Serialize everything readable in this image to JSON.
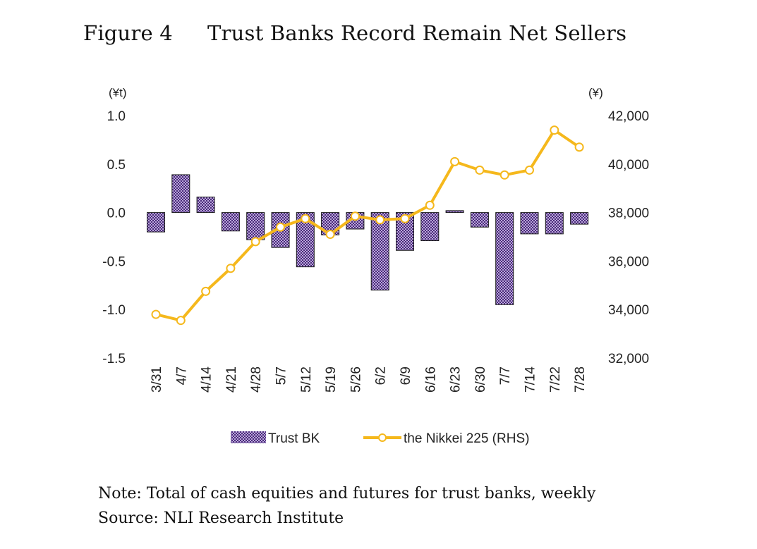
{
  "figure": {
    "number": "Figure 4",
    "title": "Trust Banks Record Remain Net Sellers"
  },
  "note": "Note: Total of cash equities and futures for trust banks, weekly",
  "source": "Source: NLI Research Institute",
  "colors": {
    "bar_fill": "#b9a6d9",
    "bar_pattern": "#4a2a7a",
    "line": "#f5b81c",
    "marker_fill": "#ffffff"
  },
  "chart_data": {
    "type": "bar",
    "categories": [
      "3/31",
      "4/7",
      "4/14",
      "4/21",
      "4/28",
      "5/7",
      "5/12",
      "5/19",
      "5/26",
      "6/2",
      "6/9",
      "6/16",
      "6/23",
      "6/30",
      "7/7",
      "7/14",
      "7/22",
      "7/28"
    ],
    "series": [
      {
        "name": "Trust BK",
        "type": "bar",
        "axis": "left",
        "values": [
          -0.2,
          0.39,
          0.16,
          -0.19,
          -0.28,
          -0.36,
          -0.56,
          -0.23,
          -0.17,
          -0.8,
          -0.39,
          -0.29,
          0.02,
          -0.15,
          -0.95,
          -0.22,
          -0.22,
          -0.12
        ]
      },
      {
        "name": "the Nikkei 225 (RHS)",
        "type": "line",
        "axis": "right",
        "values": [
          33800,
          33550,
          34750,
          35700,
          36800,
          37400,
          37750,
          37100,
          37850,
          37700,
          37750,
          38300,
          40100,
          39750,
          39550,
          39750,
          41400,
          40700
        ]
      }
    ],
    "left_axis": {
      "unit": "(¥t)",
      "range": [
        -1.5,
        1.0
      ],
      "ticks": [
        1.0,
        0.5,
        0.0,
        -0.5,
        -1.0,
        -1.5
      ],
      "tick_labels": [
        "1.0",
        "0.5",
        "0.0",
        "-0.5",
        "-1.0",
        "-1.5"
      ]
    },
    "right_axis": {
      "unit": "(¥)",
      "range": [
        32000,
        42000
      ],
      "ticks": [
        42000,
        40000,
        38000,
        36000,
        34000,
        32000
      ],
      "tick_labels": [
        "42,000",
        "40,000",
        "38,000",
        "36,000",
        "34,000",
        "32,000"
      ]
    },
    "grid": false,
    "legend": "bottom"
  }
}
